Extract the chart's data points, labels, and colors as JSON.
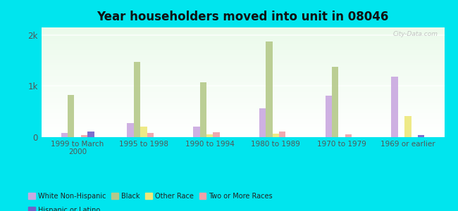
{
  "title": "Year householders moved into unit in 08046",
  "categories": [
    "1999 to March\n2000",
    "1995 to 1998",
    "1990 to 1994",
    "1980 to 1989",
    "1970 to 1979",
    "1969 or earlier"
  ],
  "races": [
    "White Non-Hispanic",
    "Black",
    "Other Race",
    "Two or More Races",
    "Hispanic or Latino"
  ],
  "colors": {
    "White Non-Hispanic": "#c9a8e0",
    "Black": "#b5c98a",
    "Other Race": "#ede87a",
    "Two or More Races": "#f0a0a8",
    "Hispanic or Latino": "#7060c8"
  },
  "values": {
    "White Non-Hispanic": [
      80,
      270,
      200,
      560,
      820,
      1180
    ],
    "Black": [
      830,
      1480,
      1070,
      1870,
      1380,
      0
    ],
    "Other Race": [
      0,
      210,
      55,
      75,
      0,
      420
    ],
    "Two or More Races": [
      45,
      80,
      95,
      105,
      55,
      0
    ],
    "Hispanic or Latino": [
      115,
      0,
      0,
      0,
      0,
      45
    ]
  },
  "ylim": [
    0,
    2150
  ],
  "ytick_labels": [
    "0",
    "1k",
    "2k"
  ],
  "ytick_vals": [
    0,
    1000,
    2000
  ],
  "background_color": "#00e5ee",
  "plot_bg": "#e0f0e0",
  "watermark": "City-Data.com"
}
